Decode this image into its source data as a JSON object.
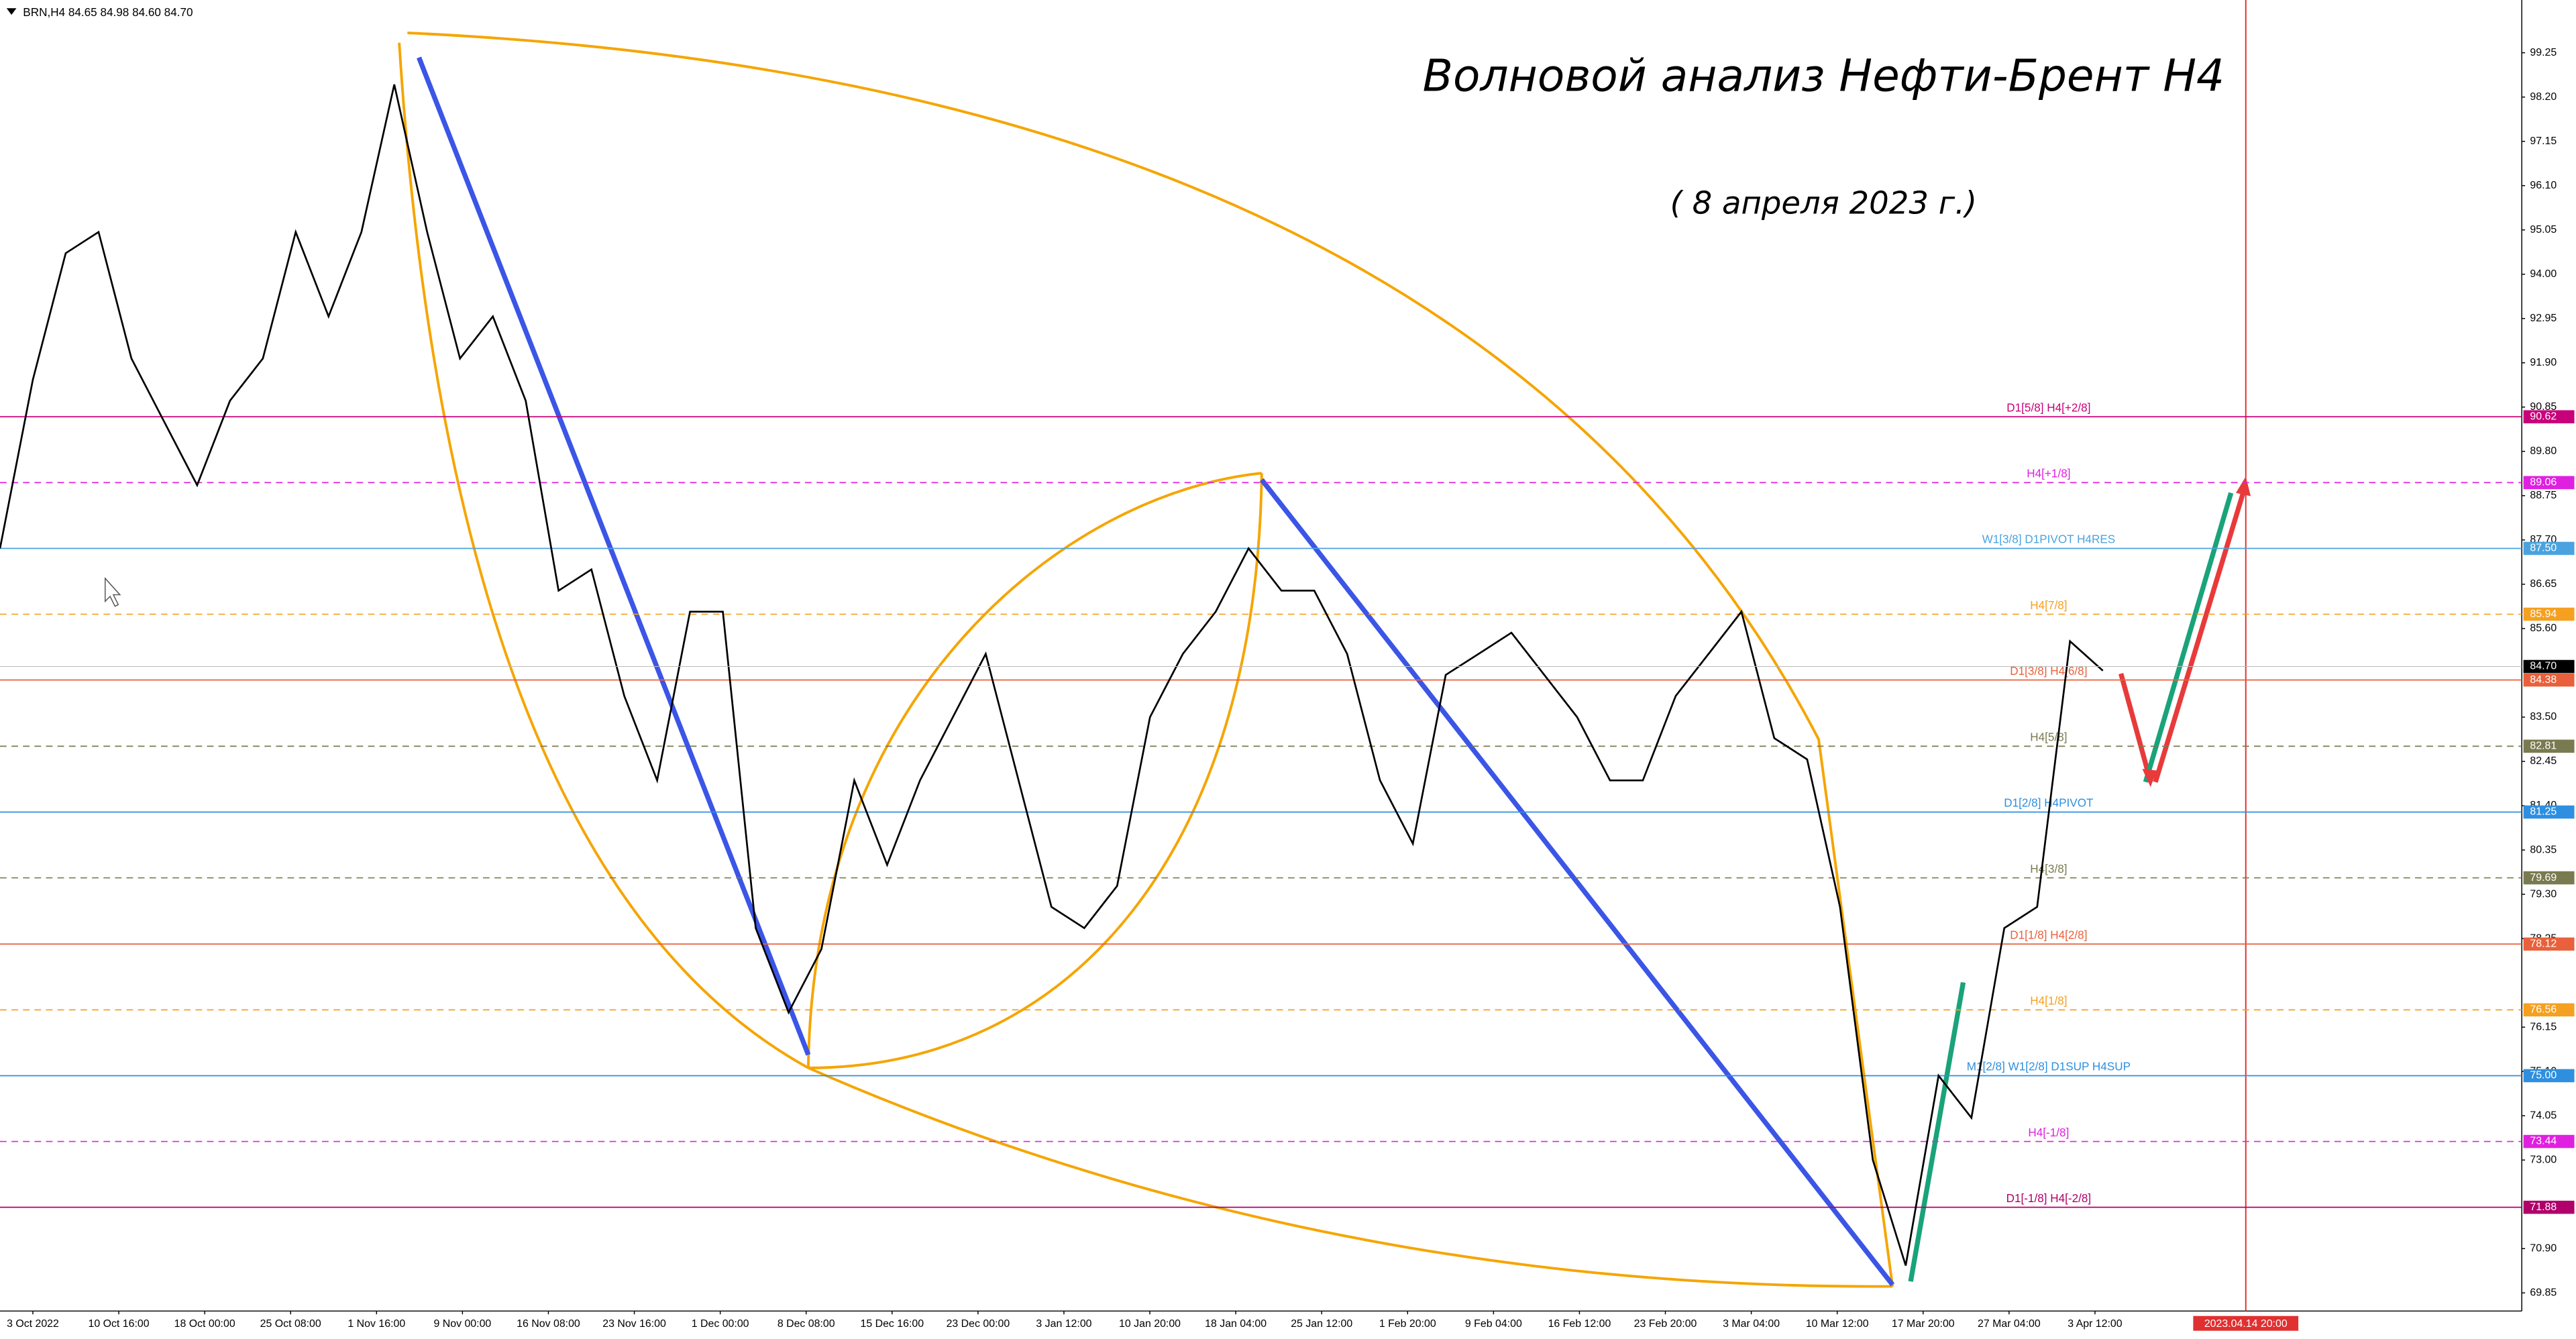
{
  "chart_data": {
    "type": "line",
    "header": "BRN,H4  84.65 84.98 84.60 84.70",
    "title": "Волновой анализ Нефти-Брент H4",
    "subtitle": "( 8 апреля 2023 г.)",
    "categories": [
      "3 Oct 2022",
      "10 Oct 16:00",
      "18 Oct 00:00",
      "25 Oct 08:00",
      "1 Nov 16:00",
      "9 Nov 00:00",
      "16 Nov 08:00",
      "23 Nov 16:00",
      "1 Dec 00:00",
      "8 Dec 08:00",
      "15 Dec 16:00",
      "23 Dec 00:00",
      "3 Jan 12:00",
      "10 Jan 20:00",
      "18 Jan 04:00",
      "25 Jan 12:00",
      "1 Feb 20:00",
      "9 Feb 04:00",
      "16 Feb 12:00",
      "23 Feb 20:00",
      "3 Mar 04:00",
      "10 Mar 12:00",
      "17 Mar 20:00",
      "27 Mar 04:00",
      "3 Apr 12:00"
    ],
    "forecast_time": "2023.04.14 20:00",
    "price": {
      "color": "#000000",
      "values": [
        87.5,
        91.5,
        94.5,
        95,
        92,
        90.5,
        89,
        91,
        92,
        95,
        93,
        95,
        98.5,
        95,
        92,
        93,
        91,
        86.5,
        87,
        84,
        82,
        86,
        86,
        78.5,
        76.5,
        78,
        82,
        80,
        82,
        83.5,
        85,
        82,
        79,
        78.5,
        79.5,
        83.5,
        85,
        86,
        87.5,
        86.5,
        86.5,
        85,
        82,
        80.5,
        84.5,
        85,
        85.5,
        84.5,
        83.5,
        82,
        82,
        84,
        85,
        86,
        83,
        82.5,
        79,
        73,
        70.5,
        75,
        74,
        78.5,
        79,
        85.3,
        84.6
      ]
    },
    "last_price": 84.7,
    "last_price_label": "84.70",
    "ylim": [
      69.42,
      100.5
    ],
    "yticks": [
      99.25,
      {
        "value": 98.2,
        "label": "98.20"
      },
      97.15,
      {
        "value": 96.1,
        "label": "96.10"
      },
      95.05,
      {
        "value": 94,
        "label": "94.00"
      },
      92.95,
      {
        "value": 91.9,
        "label": "91.90"
      },
      90.85,
      {
        "value": 89.8,
        "label": "89.80"
      },
      88.75,
      {
        "value": 87.7,
        "label": "87.70"
      },
      86.65,
      {
        "value": 85.6,
        "label": "85.60"
      },
      {
        "value": 83.5,
        "label": "83.50"
      },
      82.45,
      {
        "value": 81.4,
        "label": "81.40"
      },
      80.35,
      {
        "value": 79.3,
        "label": "79.30"
      },
      78.25,
      76.15,
      {
        "value": 75.1,
        "label": "75.10"
      },
      74.05,
      {
        "value": 73,
        "label": "73.00"
      },
      {
        "value": 70.9,
        "label": "70.90"
      },
      69.85
    ],
    "grid": false,
    "levels": [
      {
        "value": 90.62,
        "value_label": "90.62",
        "label": "D1[5/8] H4[+2/8]",
        "color": "#c8007a",
        "dashed": false
      },
      {
        "value": 89.06,
        "value_label": "89.06",
        "label": "H4[+1/8]",
        "color": "#e020e0",
        "dashed": true
      },
      {
        "value": 87.5,
        "value_label": "87.50",
        "label": "W1[3/8] D1PIVOT H4RES",
        "color": "#4aa3df",
        "dashed": false
      },
      {
        "value": 85.94,
        "value_label": "85.94",
        "label": "H4[7/8]",
        "color": "#f5a020",
        "dashed": true
      },
      {
        "value": 84.38,
        "value_label": "84.38",
        "label": "D1[3/8] H4[6/8]",
        "color": "#e8613c",
        "dashed": false
      },
      {
        "value": 82.81,
        "value_label": "82.81",
        "label": "H4[5/8]",
        "color": "#7a7a50",
        "dashed": true
      },
      {
        "value": 81.25,
        "value_label": "81.25",
        "label": "D1[2/8] H4PIVOT",
        "color": "#2e8fe0",
        "dashed": false
      },
      {
        "value": 79.69,
        "value_label": "79.69",
        "label": "H4[3/8]",
        "color": "#7a7a50",
        "dashed": true
      },
      {
        "value": 78.12,
        "value_label": "78.12",
        "label": "D1[1/8] H4[2/8]",
        "color": "#e8613c",
        "dashed": false
      },
      {
        "value": 76.56,
        "value_label": "76.56",
        "label": "H4[1/8]",
        "color": "#f5a020",
        "dashed": true
      },
      {
        "value": 75,
        "value_label": "75.00",
        "label": "M1[2/8] W1[2/8] D1SUP H4SUP",
        "color": "#2e8fe0",
        "dashed": false
      },
      {
        "value": 73.44,
        "value_label": "73.44",
        "label": "H4[-1/8]",
        "color": "#e020e0",
        "dashed": true
      },
      {
        "value": 71.88,
        "value_label": "71.88",
        "label": "D1[-1/8] H4[-2/8]",
        "color": "#b0006a",
        "dashed": false
      }
    ]
  }
}
